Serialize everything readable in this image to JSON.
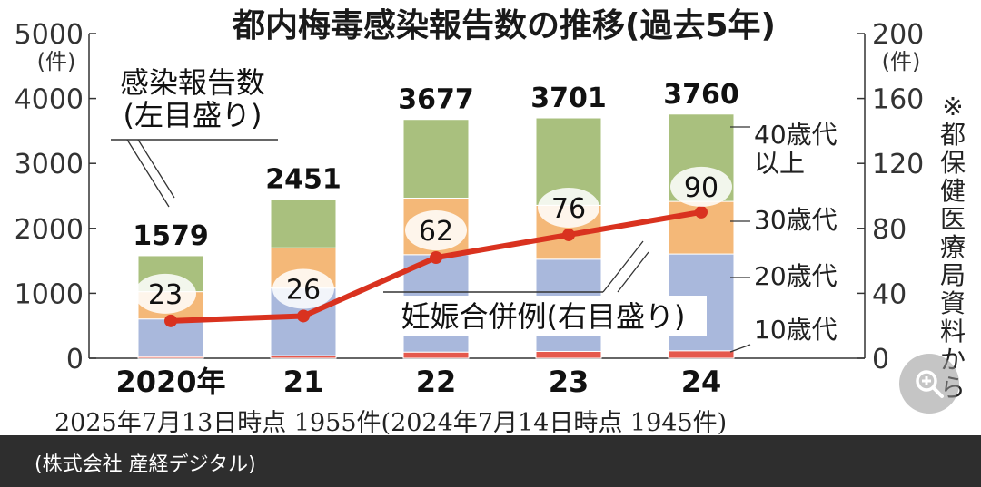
{
  "chart_data": {
    "type": "bar",
    "title": "都内梅毒感染報告数の推移(過去5年)",
    "categories": [
      "2020年",
      "21",
      "22",
      "23",
      "24"
    ],
    "left_axis": {
      "ticks": [
        "0",
        "1000",
        "2000",
        "3000",
        "4000",
        "5000"
      ],
      "unit": "(件)",
      "ylim": [
        0,
        5000
      ]
    },
    "right_axis": {
      "ticks": [
        "0",
        "40",
        "80",
        "120",
        "160",
        "200"
      ],
      "unit": "(件)",
      "ylim": [
        0,
        200
      ]
    },
    "stacked_series": [
      {
        "name": "10歳代",
        "color": "#e5594d",
        "values": [
          25,
          40,
          95,
          105,
          115
        ]
      },
      {
        "name": "20歳代",
        "color": "#a9b8dc",
        "values": [
          580,
          1040,
          1500,
          1420,
          1490
        ]
      },
      {
        "name": "30歳代",
        "color": "#f4b878",
        "values": [
          420,
          620,
          870,
          830,
          810
        ]
      },
      {
        "name": "40歳代\n以上",
        "color": "#a9c07e",
        "values": [
          554,
          751,
          1212,
          1346,
          1345
        ]
      }
    ],
    "totals": [
      1579,
      2451,
      3677,
      3701,
      3760
    ],
    "line_series": {
      "name": "妊娠合併例(右目盛り)",
      "color": "#d9321f",
      "values": [
        23,
        26,
        62,
        76,
        90
      ]
    },
    "bar_series_label": "感染報告数\n(左目盛り)"
  },
  "bottom_note": "2025年7月13日時点 1955件(2024年7月14日時点 1945件)",
  "side_note": "※都保健医療局資料から",
  "footer": {
    "credit": "(株式会社 産経デジタル)"
  },
  "zoom_button": {
    "icon": "zoom-in-icon"
  }
}
